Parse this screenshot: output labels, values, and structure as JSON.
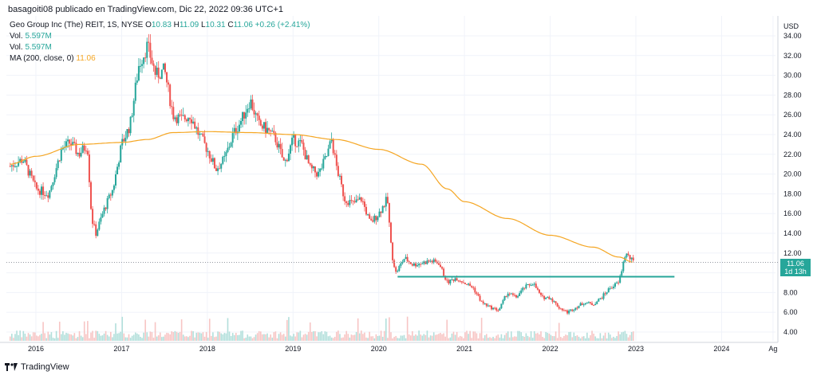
{
  "header": {
    "publisher": "basagoiti08 publicado en TradingView.com, Dic 22, 2022 09:36 UTC+1"
  },
  "legend": {
    "symbol": "Geo Group Inc (The) REIT, 1S, NYSE",
    "open_label": "O",
    "open": "10.83",
    "high_label": "H",
    "high": "11.09",
    "low_label": "L",
    "low": "10.31",
    "close_label": "C",
    "close": "11.06",
    "change": "+0.26 (+2.41%)",
    "vol1_label": "Vol.",
    "vol1": "5.597M",
    "vol2_label": "Vol.",
    "vol2": "5.597M",
    "ma_label": "MA (200, close, 0)",
    "ma": "11.06"
  },
  "price_tag": {
    "price": "11.06",
    "countdown": "1d 13h"
  },
  "footer": {
    "brand": "TradingView"
  },
  "colors": {
    "up": "#26a69a",
    "down": "#ef5350",
    "ma": "#f5a623",
    "support": "#26a69a",
    "grid": "#f0f3fa",
    "axis_text": "#131722"
  },
  "chart_data": {
    "type": "line",
    "currency": "USD",
    "y_axis": {
      "min": 4,
      "max": 34,
      "ticks": [
        "4.00",
        "6.00",
        "8.00",
        "10.00",
        "12.00",
        "14.00",
        "16.00",
        "18.00",
        "20.00",
        "22.00",
        "24.00",
        "26.00",
        "28.00",
        "30.00",
        "32.00",
        "34.00"
      ]
    },
    "x_axis": {
      "ticks": [
        "2016",
        "2017",
        "2018",
        "2019",
        "2020",
        "2021",
        "2022",
        "2023",
        "2024",
        "Ag"
      ]
    },
    "x_positions": [
      2016,
      2017,
      2018,
      2019,
      2020,
      2021,
      2022,
      2023,
      2024,
      2024.6
    ],
    "x_range": [
      2015.7,
      2024.65
    ],
    "series": [
      {
        "name": "Geo Group Inc (The) REIT",
        "kind": "candles",
        "points": [
          [
            2015.7,
            20.8
          ],
          [
            2015.85,
            21.5
          ],
          [
            2016.0,
            18.5
          ],
          [
            2016.15,
            18.0
          ],
          [
            2016.3,
            22.5
          ],
          [
            2016.4,
            23.2
          ],
          [
            2016.5,
            22.0
          ],
          [
            2016.6,
            23.0
          ],
          [
            2016.65,
            15.5
          ],
          [
            2016.7,
            14.0
          ],
          [
            2016.8,
            16.5
          ],
          [
            2016.9,
            18.5
          ],
          [
            2017.0,
            23.0
          ],
          [
            2017.1,
            25.0
          ],
          [
            2017.2,
            31.0
          ],
          [
            2017.3,
            33.0
          ],
          [
            2017.4,
            30.0
          ],
          [
            2017.5,
            30.5
          ],
          [
            2017.6,
            26.0
          ],
          [
            2017.7,
            25.5
          ],
          [
            2017.8,
            26.0
          ],
          [
            2017.9,
            24.0
          ],
          [
            2018.0,
            22.5
          ],
          [
            2018.1,
            20.5
          ],
          [
            2018.2,
            21.5
          ],
          [
            2018.3,
            24.0
          ],
          [
            2018.4,
            25.5
          ],
          [
            2018.5,
            27.5
          ],
          [
            2018.6,
            25.0
          ],
          [
            2018.7,
            24.5
          ],
          [
            2018.8,
            23.5
          ],
          [
            2018.9,
            21.0
          ],
          [
            2019.0,
            23.5
          ],
          [
            2019.1,
            23.0
          ],
          [
            2019.2,
            20.5
          ],
          [
            2019.3,
            20.0
          ],
          [
            2019.4,
            22.0
          ],
          [
            2019.45,
            23.5
          ],
          [
            2019.5,
            21.0
          ],
          [
            2019.6,
            17.5
          ],
          [
            2019.7,
            17.0
          ],
          [
            2019.8,
            17.5
          ],
          [
            2019.9,
            15.0
          ],
          [
            2020.0,
            16.0
          ],
          [
            2020.1,
            17.5
          ],
          [
            2020.15,
            12.0
          ],
          [
            2020.2,
            10.0
          ],
          [
            2020.3,
            11.5
          ],
          [
            2020.4,
            10.8
          ],
          [
            2020.5,
            11.0
          ],
          [
            2020.6,
            11.2
          ],
          [
            2020.7,
            11.0
          ],
          [
            2020.8,
            9.0
          ],
          [
            2020.9,
            9.5
          ],
          [
            2021.0,
            9.0
          ],
          [
            2021.1,
            8.5
          ],
          [
            2021.2,
            7.0
          ],
          [
            2021.3,
            6.5
          ],
          [
            2021.4,
            6.2
          ],
          [
            2021.5,
            8.0
          ],
          [
            2021.6,
            7.5
          ],
          [
            2021.7,
            8.5
          ],
          [
            2021.8,
            9.0
          ],
          [
            2021.9,
            7.5
          ],
          [
            2022.0,
            7.5
          ],
          [
            2022.1,
            6.5
          ],
          [
            2022.2,
            6.0
          ],
          [
            2022.3,
            6.5
          ],
          [
            2022.4,
            7.0
          ],
          [
            2022.5,
            6.8
          ],
          [
            2022.6,
            7.5
          ],
          [
            2022.7,
            8.5
          ],
          [
            2022.8,
            9.0
          ],
          [
            2022.88,
            12.0
          ],
          [
            2022.97,
            11.06
          ]
        ]
      },
      {
        "name": "MA (200, close, 0)",
        "kind": "line",
        "points": [
          [
            2015.7,
            21.0
          ],
          [
            2016.0,
            21.8
          ],
          [
            2016.5,
            23.0
          ],
          [
            2017.0,
            23.2
          ],
          [
            2017.3,
            23.5
          ],
          [
            2017.6,
            24.2
          ],
          [
            2018.0,
            24.3
          ],
          [
            2018.5,
            24.2
          ],
          [
            2019.0,
            24.0
          ],
          [
            2019.5,
            23.5
          ],
          [
            2020.0,
            22.5
          ],
          [
            2020.5,
            21.0
          ],
          [
            2020.8,
            18.5
          ],
          [
            2021.0,
            17.2
          ],
          [
            2021.5,
            15.5
          ],
          [
            2022.0,
            13.8
          ],
          [
            2022.5,
            12.6
          ],
          [
            2022.8,
            11.6
          ],
          [
            2022.97,
            11.06
          ]
        ]
      },
      {
        "name": "",
        "kind": "hline",
        "points": [
          [
            2020.22,
            9.6
          ],
          [
            2023.45,
            9.6
          ]
        ]
      }
    ]
  }
}
